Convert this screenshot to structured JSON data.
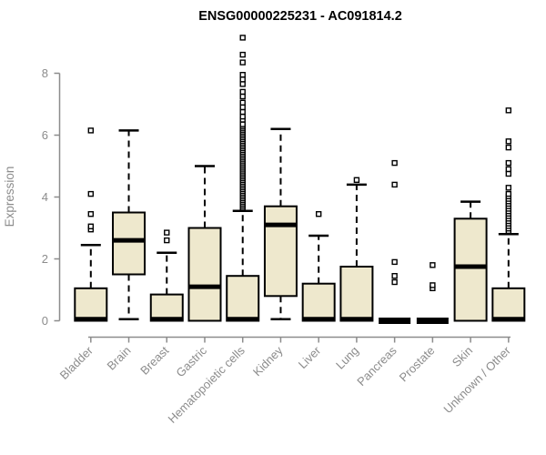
{
  "chart_data": {
    "type": "boxplot",
    "title": "ENSG00000225231 - AC091814.2",
    "ylabel": "Expression",
    "xlabel": "",
    "yticks": [
      0,
      2,
      4,
      6,
      8
    ],
    "ylim": [
      0,
      9.3
    ],
    "grid": false,
    "legend": "none",
    "colors": {
      "box_fill": "#EEE8CD",
      "box_border": "#000000",
      "median": "#000000",
      "whisker": "#000000",
      "outlier_fill": "#ffffff",
      "axis": "#8C8C8C",
      "axis_text": "#8C8C8C",
      "title": "#000000",
      "background": "#ffffff"
    },
    "categories": [
      "Bladder",
      "Brain",
      "Breast",
      "Gastric",
      "Hematopoietic cells",
      "Kidney",
      "Liver",
      "Lung",
      "Pancreas",
      "Prostate",
      "Skin",
      "Unknown / Other"
    ],
    "series": [
      {
        "name": "Bladder",
        "low": 0,
        "q1": 0,
        "median": 0.05,
        "q3": 1.05,
        "high": 2.45,
        "outliers": [
          2.95,
          3.05,
          3.45,
          4.1,
          6.15
        ]
      },
      {
        "name": "Brain",
        "low": 0.05,
        "q1": 1.5,
        "median": 2.6,
        "q3": 3.5,
        "high": 6.15,
        "outliers": []
      },
      {
        "name": "Breast",
        "low": 0,
        "q1": 0,
        "median": 0.05,
        "q3": 0.85,
        "high": 2.2,
        "outliers": [
          2.6,
          2.85
        ]
      },
      {
        "name": "Gastric",
        "low": 0,
        "q1": 0,
        "median": 1.1,
        "q3": 3.0,
        "high": 5.0,
        "outliers": []
      },
      {
        "name": "Hematopoietic cells",
        "low": 0,
        "q1": 0,
        "median": 0.05,
        "q3": 1.45,
        "high": 3.55,
        "outliers": [
          3.65,
          3.71,
          3.77,
          3.83,
          3.89,
          3.95,
          4.01,
          4.07,
          4.13,
          4.19,
          4.25,
          4.31,
          4.37,
          4.43,
          4.49,
          4.55,
          4.61,
          4.67,
          4.73,
          4.79,
          4.85,
          4.91,
          4.97,
          5.03,
          5.09,
          5.15,
          5.21,
          5.27,
          5.33,
          5.39,
          5.45,
          5.51,
          5.57,
          5.63,
          5.69,
          5.75,
          5.81,
          5.87,
          5.93,
          5.99,
          6.05,
          6.11,
          6.17,
          6.23,
          6.29,
          6.35,
          6.5,
          6.6,
          6.75,
          6.9,
          7.05,
          7.25,
          7.4,
          7.65,
          7.8,
          7.95,
          8.35,
          8.6,
          9.15
        ]
      },
      {
        "name": "Kidney",
        "low": 0.05,
        "q1": 0.8,
        "median": 3.1,
        "q3": 3.7,
        "high": 6.2,
        "outliers": []
      },
      {
        "name": "Liver",
        "low": 0,
        "q1": 0,
        "median": 0.05,
        "q3": 1.2,
        "high": 2.75,
        "outliers": [
          3.45
        ]
      },
      {
        "name": "Lung",
        "low": 0,
        "q1": 0,
        "median": 0.05,
        "q3": 1.75,
        "high": 4.4,
        "outliers": [
          4.55
        ]
      },
      {
        "name": "Pancreas",
        "low": 0,
        "q1": 0,
        "median": 0,
        "q3": 0,
        "high": 0,
        "outliers": [
          1.25,
          1.45,
          1.9,
          4.4,
          5.1
        ]
      },
      {
        "name": "Prostate",
        "low": 0,
        "q1": 0,
        "median": 0,
        "q3": 0,
        "high": 0,
        "outliers": [
          1.05,
          1.15,
          1.8
        ]
      },
      {
        "name": "Skin",
        "low": 0,
        "q1": 0,
        "median": 1.75,
        "q3": 3.3,
        "high": 3.85,
        "outliers": []
      },
      {
        "name": "Unknown / Other",
        "low": 0,
        "q1": 0,
        "median": 0.05,
        "q3": 1.05,
        "high": 2.8,
        "outliers": [
          2.9,
          2.98,
          3.06,
          3.14,
          3.22,
          3.3,
          3.38,
          3.46,
          3.54,
          3.62,
          3.7,
          3.78,
          3.86,
          3.94,
          4.02,
          4.1,
          4.3,
          4.75,
          4.9,
          5.1,
          5.6,
          5.8,
          6.8
        ]
      }
    ]
  }
}
